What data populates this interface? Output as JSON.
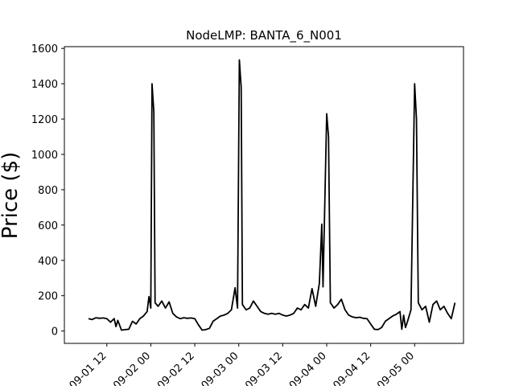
{
  "chart_data": {
    "type": "line",
    "title": "NodeLMP: BANTA_6_N001",
    "xlabel": "",
    "ylabel": "Price ($)",
    "ylim": [
      -70,
      1610
    ],
    "xlim": [
      "2022-09-01 00:25",
      "2022-09-05 13:20"
    ],
    "yticks": [
      0,
      200,
      400,
      600,
      800,
      1000,
      1200,
      1400,
      1600
    ],
    "xticks": [
      {
        "t": "2022-09-01 12:00",
        "label": "09-01 12"
      },
      {
        "t": "2022-09-02 00:00",
        "label": "09-02 00"
      },
      {
        "t": "2022-09-02 12:00",
        "label": "09-02 12"
      },
      {
        "t": "2022-09-03 00:00",
        "label": "09-03 00"
      },
      {
        "t": "2022-09-03 12:00",
        "label": "09-03 12"
      },
      {
        "t": "2022-09-04 00:00",
        "label": "09-04 00"
      },
      {
        "t": "2022-09-04 12:00",
        "label": "09-04 12"
      },
      {
        "t": "2022-09-05 00:00",
        "label": "09-05 00"
      }
    ],
    "grid": false,
    "series": [
      {
        "color": "#000000",
        "points": [
          [
            "2022-09-01 07:00",
            70
          ],
          [
            "2022-09-01 08:00",
            65
          ],
          [
            "2022-09-01 09:00",
            75
          ],
          [
            "2022-09-01 10:00",
            72
          ],
          [
            "2022-09-01 11:00",
            74
          ],
          [
            "2022-09-01 12:00",
            70
          ],
          [
            "2022-09-01 13:00",
            50
          ],
          [
            "2022-09-01 14:00",
            70
          ],
          [
            "2022-09-01 14:30",
            25
          ],
          [
            "2022-09-01 15:00",
            60
          ],
          [
            "2022-09-01 16:00",
            5
          ],
          [
            "2022-09-01 17:00",
            8
          ],
          [
            "2022-09-01 18:00",
            10
          ],
          [
            "2022-09-01 19:00",
            55
          ],
          [
            "2022-09-01 20:00",
            40
          ],
          [
            "2022-09-01 21:00",
            70
          ],
          [
            "2022-09-01 22:00",
            85
          ],
          [
            "2022-09-01 23:00",
            110
          ],
          [
            "2022-09-01 23:30",
            195
          ],
          [
            "2022-09-02 00:00",
            130
          ],
          [
            "2022-09-02 00:20",
            1400
          ],
          [
            "2022-09-02 00:50",
            1240
          ],
          [
            "2022-09-02 01:10",
            160
          ],
          [
            "2022-09-02 02:00",
            140
          ],
          [
            "2022-09-02 03:00",
            170
          ],
          [
            "2022-09-02 04:00",
            130
          ],
          [
            "2022-09-02 05:00",
            165
          ],
          [
            "2022-09-02 06:00",
            100
          ],
          [
            "2022-09-02 07:00",
            80
          ],
          [
            "2022-09-02 08:00",
            70
          ],
          [
            "2022-09-02 09:00",
            75
          ],
          [
            "2022-09-02 10:00",
            72
          ],
          [
            "2022-09-02 11:00",
            74
          ],
          [
            "2022-09-02 12:00",
            70
          ],
          [
            "2022-09-02 13:00",
            35
          ],
          [
            "2022-09-02 14:00",
            5
          ],
          [
            "2022-09-02 15:00",
            8
          ],
          [
            "2022-09-02 16:00",
            15
          ],
          [
            "2022-09-02 17:00",
            55
          ],
          [
            "2022-09-02 18:00",
            70
          ],
          [
            "2022-09-02 19:00",
            85
          ],
          [
            "2022-09-02 20:00",
            90
          ],
          [
            "2022-09-02 21:00",
            100
          ],
          [
            "2022-09-02 22:00",
            120
          ],
          [
            "2022-09-02 23:00",
            245
          ],
          [
            "2022-09-02 23:40",
            130
          ],
          [
            "2022-09-03 00:10",
            1535
          ],
          [
            "2022-09-03 00:40",
            1380
          ],
          [
            "2022-09-03 01:00",
            150
          ],
          [
            "2022-09-03 02:00",
            120
          ],
          [
            "2022-09-03 03:00",
            130
          ],
          [
            "2022-09-03 04:00",
            170
          ],
          [
            "2022-09-03 05:00",
            140
          ],
          [
            "2022-09-03 06:00",
            110
          ],
          [
            "2022-09-03 07:00",
            100
          ],
          [
            "2022-09-03 08:00",
            95
          ],
          [
            "2022-09-03 09:00",
            100
          ],
          [
            "2022-09-03 10:00",
            95
          ],
          [
            "2022-09-03 11:00",
            100
          ],
          [
            "2022-09-03 12:00",
            90
          ],
          [
            "2022-09-03 13:00",
            85
          ],
          [
            "2022-09-03 14:00",
            90
          ],
          [
            "2022-09-03 15:00",
            100
          ],
          [
            "2022-09-03 16:00",
            130
          ],
          [
            "2022-09-03 17:00",
            120
          ],
          [
            "2022-09-03 18:00",
            150
          ],
          [
            "2022-09-03 19:00",
            130
          ],
          [
            "2022-09-03 20:00",
            240
          ],
          [
            "2022-09-03 21:00",
            140
          ],
          [
            "2022-09-03 22:00",
            270
          ],
          [
            "2022-09-03 22:40",
            605
          ],
          [
            "2022-09-03 23:00",
            250
          ],
          [
            "2022-09-04 00:00",
            1230
          ],
          [
            "2022-09-04 00:30",
            1100
          ],
          [
            "2022-09-04 01:00",
            160
          ],
          [
            "2022-09-04 02:00",
            130
          ],
          [
            "2022-09-04 03:00",
            150
          ],
          [
            "2022-09-04 04:00",
            180
          ],
          [
            "2022-09-04 05:00",
            120
          ],
          [
            "2022-09-04 06:00",
            90
          ],
          [
            "2022-09-04 07:00",
            80
          ],
          [
            "2022-09-04 08:00",
            75
          ],
          [
            "2022-09-04 09:00",
            78
          ],
          [
            "2022-09-04 10:00",
            72
          ],
          [
            "2022-09-04 11:00",
            70
          ],
          [
            "2022-09-04 12:00",
            40
          ],
          [
            "2022-09-04 13:00",
            10
          ],
          [
            "2022-09-04 14:00",
            8
          ],
          [
            "2022-09-04 15:00",
            20
          ],
          [
            "2022-09-04 16:00",
            55
          ],
          [
            "2022-09-04 17:00",
            70
          ],
          [
            "2022-09-04 18:00",
            85
          ],
          [
            "2022-09-04 19:00",
            95
          ],
          [
            "2022-09-04 20:00",
            110
          ],
          [
            "2022-09-04 20:30",
            10
          ],
          [
            "2022-09-04 21:00",
            90
          ],
          [
            "2022-09-04 21:30",
            20
          ],
          [
            "2022-09-04 22:00",
            50
          ],
          [
            "2022-09-04 23:00",
            120
          ],
          [
            "2022-09-05 00:00",
            1400
          ],
          [
            "2022-09-05 00:30",
            1200
          ],
          [
            "2022-09-05 01:00",
            160
          ],
          [
            "2022-09-05 02:00",
            120
          ],
          [
            "2022-09-05 03:00",
            140
          ],
          [
            "2022-09-05 04:00",
            50
          ],
          [
            "2022-09-05 05:00",
            150
          ],
          [
            "2022-09-05 06:00",
            170
          ],
          [
            "2022-09-05 07:00",
            120
          ],
          [
            "2022-09-05 08:00",
            140
          ],
          [
            "2022-09-05 09:00",
            100
          ],
          [
            "2022-09-05 10:00",
            70
          ],
          [
            "2022-09-05 11:00",
            160
          ]
        ]
      }
    ]
  }
}
